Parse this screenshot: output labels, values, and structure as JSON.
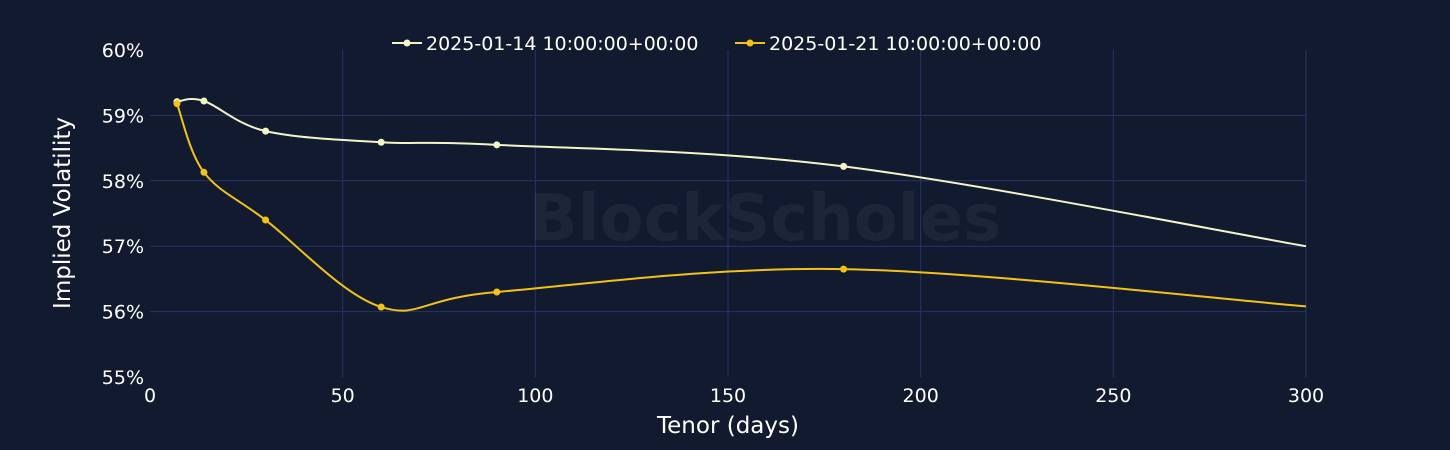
{
  "chart_data": {
    "type": "line",
    "title": "",
    "xlabel": "Tenor (days)",
    "ylabel": "Implied Volatility",
    "xlim": [
      0,
      300
    ],
    "ylim": [
      55,
      60
    ],
    "x_ticks": [
      0,
      50,
      100,
      150,
      200,
      250,
      300
    ],
    "x_tick_labels": [
      "0",
      "50",
      "100",
      "150",
      "200",
      "250",
      "300"
    ],
    "y_ticks": [
      55,
      56,
      57,
      58,
      59,
      60
    ],
    "y_tick_labels": [
      "55%",
      "56%",
      "57%",
      "58%",
      "59%",
      "60%"
    ],
    "grid": true,
    "legend_position": "top-center",
    "watermark": "BlockScholes",
    "series": [
      {
        "name": "2025-01-14 10:00:00+00:00",
        "color": "#f2f5c8",
        "markers": [
          {
            "x": 7,
            "y": 59.21
          },
          {
            "x": 14,
            "y": 59.22
          },
          {
            "x": 30,
            "y": 58.76
          },
          {
            "x": 60,
            "y": 58.59
          },
          {
            "x": 90,
            "y": 58.55
          },
          {
            "x": 180,
            "y": 58.22
          }
        ],
        "end": {
          "x": 300,
          "y": 57.0
        }
      },
      {
        "name": "2025-01-21 10:00:00+00:00",
        "color": "#f2c316",
        "markers": [
          {
            "x": 7,
            "y": 59.18
          },
          {
            "x": 14,
            "y": 58.13
          },
          {
            "x": 30,
            "y": 57.4
          },
          {
            "x": 60,
            "y": 56.07
          },
          {
            "x": 90,
            "y": 56.3
          },
          {
            "x": 180,
            "y": 56.65
          }
        ],
        "end": {
          "x": 300,
          "y": 56.08
        }
      }
    ]
  }
}
